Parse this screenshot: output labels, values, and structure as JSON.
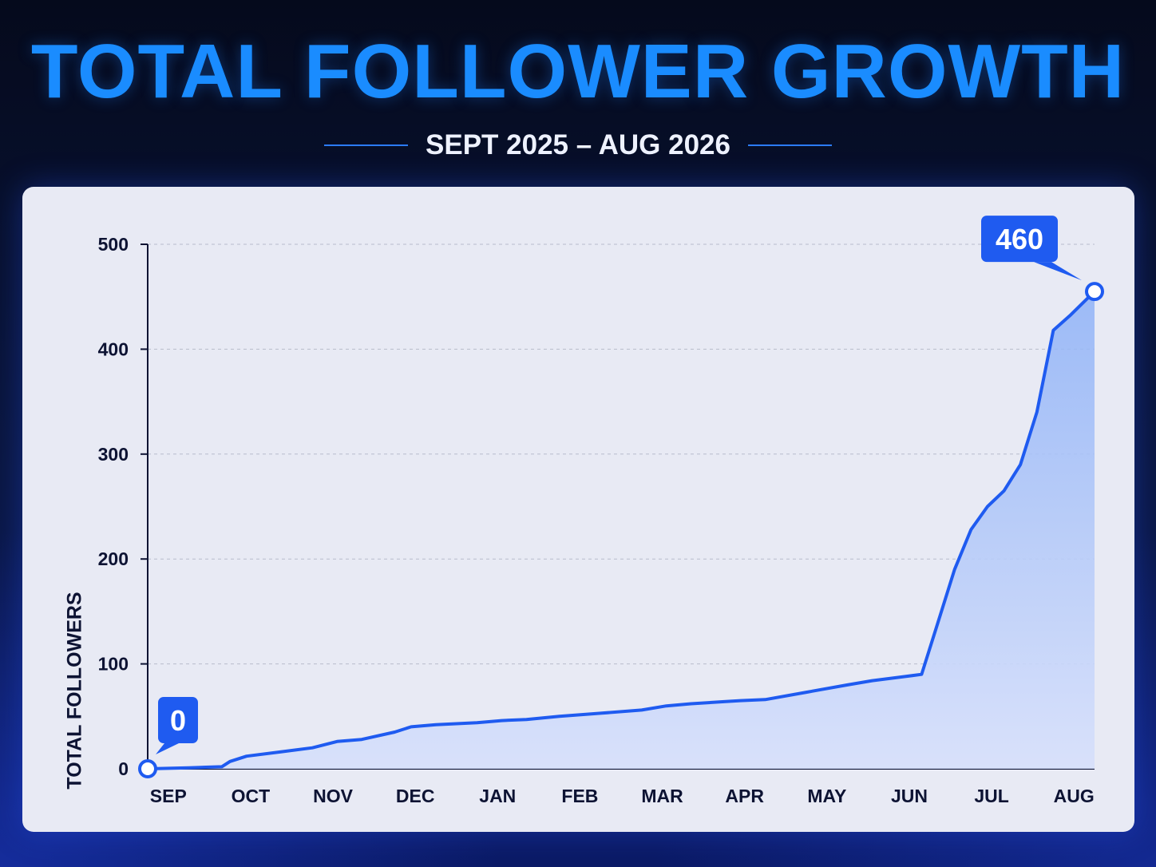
{
  "header": {
    "title": "TOTAL FOLLOWER GROWTH",
    "subtitle": "SEPT 2025 – AUG 2026"
  },
  "colors": {
    "accent": "#1a8cff",
    "line": "#1f5bf0",
    "card_bg": "#e8eaf4",
    "text_dark": "#0d1333"
  },
  "chart_data": {
    "type": "area",
    "title": "TOTAL FOLLOWER GROWTH",
    "subtitle": "SEPT 2025 – AUG 2026",
    "xlabel": "",
    "ylabel": "TOTAL FOLLOWERS",
    "ylim": [
      0,
      500
    ],
    "yticks": [
      0,
      100,
      200,
      300,
      400,
      500
    ],
    "categories": [
      "SEP",
      "OCT",
      "NOV",
      "DEC",
      "JAN",
      "FEB",
      "MAR",
      "APR",
      "MAY",
      "JUN",
      "JUL",
      "AUG"
    ],
    "grid": true,
    "series": [
      {
        "x": [
          0.0,
          0.5,
          0.9,
          1.0,
          1.2,
          1.6,
          2.0,
          2.3,
          2.6,
          3.0,
          3.2,
          3.5,
          4.0,
          4.3,
          4.6,
          5.0,
          5.5,
          6.0,
          6.3,
          6.6,
          7.0,
          7.2,
          7.5,
          8.0,
          8.5,
          8.8,
          9.0,
          9.2,
          9.4,
          9.6,
          9.8,
          10.0,
          10.2,
          10.4,
          10.6,
          10.8,
          11.0,
          11.2
        ],
        "y": [
          0,
          1,
          2,
          7,
          12,
          16,
          20,
          26,
          28,
          35,
          40,
          42,
          44,
          46,
          47,
          50,
          53,
          56,
          60,
          62,
          64,
          65,
          66,
          73,
          80,
          84,
          86,
          88,
          90,
          140,
          190,
          228,
          250,
          265,
          290,
          340,
          418,
          432
        ]
      }
    ],
    "annotations": [
      {
        "label": "0",
        "x": 0.0,
        "y": 0
      },
      {
        "label": "460",
        "x": 11.5,
        "y": 455
      }
    ]
  }
}
